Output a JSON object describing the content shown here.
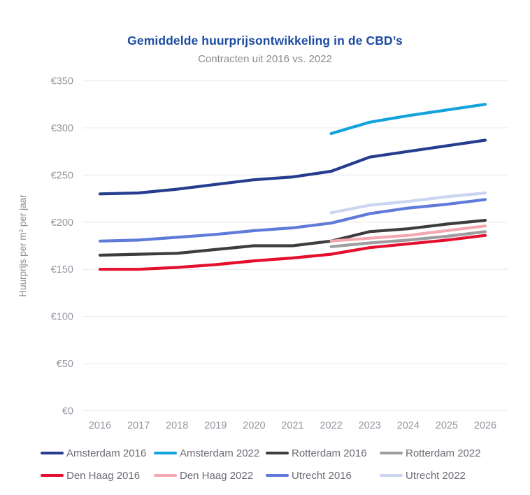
{
  "chart": {
    "title": "Gemiddelde huurprijsontwikkeling in de CBD’s",
    "subtitle": "Contracten uit 2016 vs. 2022"
  },
  "chart_data": {
    "type": "line",
    "x": [
      2016,
      2017,
      2018,
      2019,
      2020,
      2021,
      2022,
      2023,
      2024,
      2025,
      2026
    ],
    "xlabel": "",
    "ylabel": "Huurprijs per m² per jaar",
    "ylim": [
      0,
      350
    ],
    "y_ticks": [
      0,
      50,
      100,
      150,
      200,
      250,
      300,
      350
    ],
    "y_tick_labels": [
      "€0",
      "€50",
      "€100",
      "€150",
      "€200",
      "€250",
      "€300",
      "€350"
    ],
    "grid": true,
    "legend_position": "bottom",
    "series": [
      {
        "name": "Amsterdam 2016",
        "color": "#263D8F",
        "start_year": 2016,
        "values": [
          230,
          231,
          235,
          240,
          245,
          248,
          254,
          269,
          275,
          281,
          287
        ]
      },
      {
        "name": "Amsterdam 2022",
        "color": "#12A3DC",
        "start_year": 2022,
        "values": [
          294,
          306,
          313,
          319,
          325
        ]
      },
      {
        "name": "Rotterdam 2016",
        "color": "#3D3D3F",
        "start_year": 2016,
        "values": [
          165,
          166,
          167,
          171,
          175,
          175,
          180,
          190,
          193,
          198,
          202
        ]
      },
      {
        "name": "Rotterdam 2022",
        "color": "#9D9DA0",
        "start_year": 2022,
        "values": [
          174,
          178,
          181,
          185,
          190
        ]
      },
      {
        "name": "Den Haag 2016",
        "color": "#E30F2D",
        "start_year": 2016,
        "values": [
          150,
          150,
          152,
          155,
          159,
          162,
          166,
          173,
          177,
          181,
          186
        ]
      },
      {
        "name": "Den Haag 2022",
        "color": "#F3A7B1",
        "start_year": 2022,
        "values": [
          180,
          183,
          186,
          191,
          196
        ]
      },
      {
        "name": "Utrecht 2016",
        "color": "#5F7AD9",
        "start_year": 2016,
        "values": [
          180,
          181,
          184,
          187,
          191,
          194,
          199,
          209,
          215,
          219,
          224
        ]
      },
      {
        "name": "Utrecht 2022",
        "color": "#CBD5F1",
        "start_year": 2022,
        "values": [
          210,
          218,
          222,
          227,
          231
        ]
      }
    ]
  },
  "colors": {
    "title": "#1E4CA1",
    "subtitle": "#8A8A8F",
    "tick_label": "#9496A0",
    "axis_title": "#8E9097",
    "legend_text": "#6C6C75",
    "gridline": "#ECECEE",
    "background": "#FFFFFF"
  }
}
